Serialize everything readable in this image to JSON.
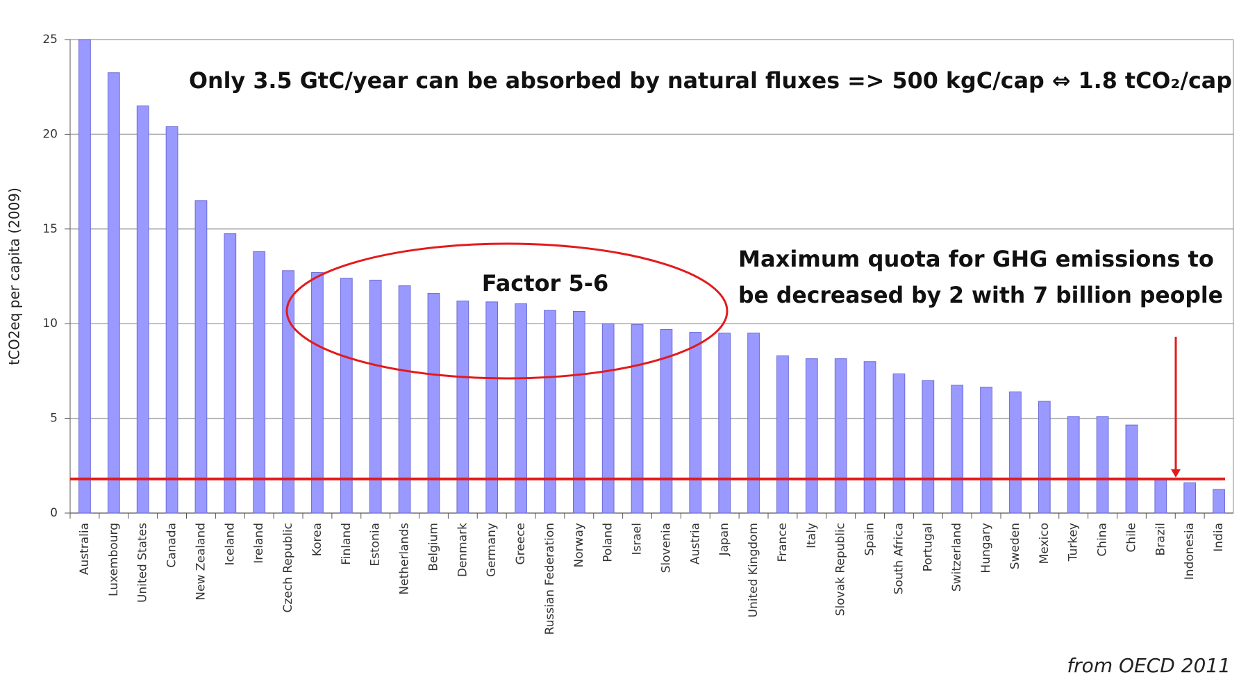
{
  "chart_data": {
    "type": "bar",
    "y_label": "tCO2eq per capita (2009)",
    "categories": [
      "Australia",
      "Luxembourg",
      "United States",
      "Canada",
      "New Zealand",
      "Iceland",
      "Ireland",
      "Czech Republic",
      "Korea",
      "Finland",
      "Estonia",
      "Netherlands",
      "Belgium",
      "Denmark",
      "Germany",
      "Greece",
      "Russian Federation",
      "Norway",
      "Poland",
      "Israel",
      "Slovenia",
      "Austria",
      "Japan",
      "United Kingdom",
      "France",
      "Italy",
      "Slovak Republic",
      "Spain",
      "South Africa",
      "Portugal",
      "Switzerland",
      "Hungary",
      "Sweden",
      "Mexico",
      "Turkey",
      "China",
      "Chile",
      "Brazil",
      "Indonesia",
      "India"
    ],
    "values": [
      25.0,
      23.25,
      21.5,
      20.4,
      16.5,
      14.75,
      13.8,
      12.8,
      12.7,
      12.4,
      12.3,
      12.0,
      11.6,
      11.2,
      11.15,
      11.05,
      10.7,
      10.65,
      10.0,
      9.95,
      9.7,
      9.55,
      9.5,
      9.5,
      8.3,
      8.15,
      8.15,
      8.0,
      7.35,
      7.0,
      6.75,
      6.65,
      6.4,
      5.9,
      5.1,
      5.1,
      4.65,
      1.75,
      1.6,
      1.25
    ],
    "color": "#9999ff",
    "ylim": [
      0,
      25
    ],
    "yticks": [
      0,
      5,
      10,
      15,
      20,
      25
    ],
    "grid": true,
    "threshold": 1.8,
    "threshold_color": "#e31a1c",
    "headline": "Only 3.5 GtC/year can be absorbed by natural fluxes => 500 kgC/cap ⇔ 1.8 tCO₂/cap",
    "ellipse_label": "Factor 5-6",
    "quota_note": [
      "Maximum quota for GHG emissions to",
      "be decreased by 2 with 7 billion people"
    ],
    "source": "from OECD 2011"
  }
}
